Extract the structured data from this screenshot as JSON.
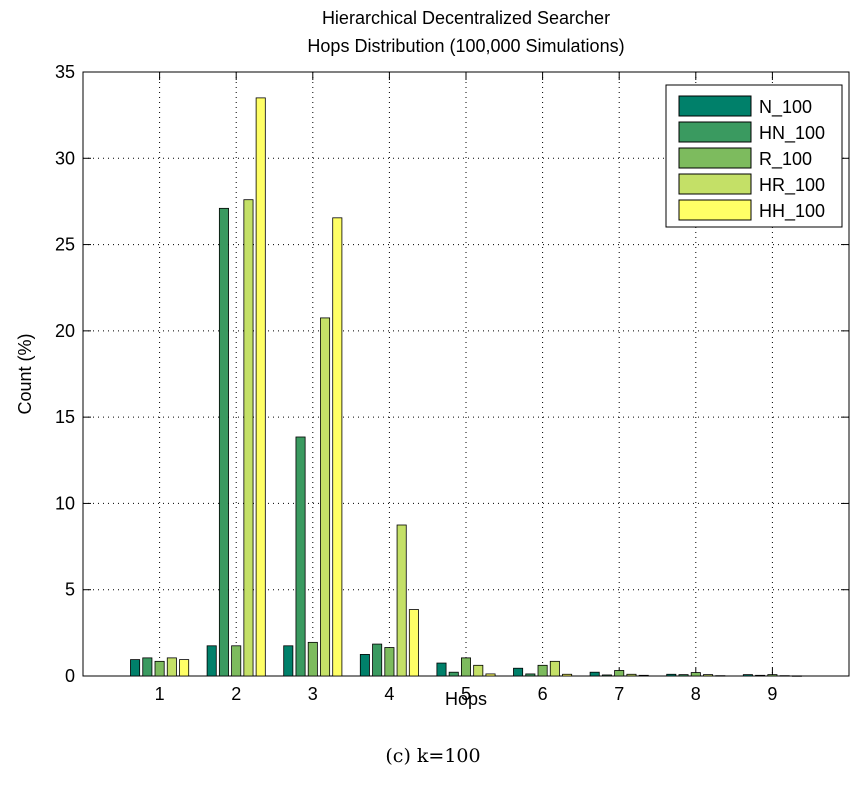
{
  "chart_data": {
    "type": "bar",
    "title": "Hierarchical Decentralized Searcher",
    "subtitle": "Hops Distribution (100,000 Simulations)",
    "xlabel": "Hops",
    "ylabel": "Count (%)",
    "categories": [
      "1",
      "2",
      "3",
      "4",
      "5",
      "6",
      "7",
      "8",
      "9"
    ],
    "ylim": [
      0,
      35
    ],
    "yticks": [
      "0",
      "5",
      "10",
      "15",
      "20",
      "25",
      "30",
      "35"
    ],
    "grid": true,
    "legend_position": "top-right",
    "series": [
      {
        "name": "N_100",
        "color": "#00806a",
        "values": [
          0.95,
          1.75,
          1.75,
          1.25,
          0.75,
          0.45,
          0.22,
          0.1,
          0.08
        ]
      },
      {
        "name": "HN_100",
        "color": "#3a9a60",
        "values": [
          1.05,
          27.1,
          13.85,
          1.85,
          0.22,
          0.12,
          0.06,
          0.08,
          0.04
        ]
      },
      {
        "name": "R_100",
        "color": "#7dbb5e",
        "values": [
          0.85,
          1.75,
          1.95,
          1.65,
          1.05,
          0.62,
          0.32,
          0.2,
          0.08
        ]
      },
      {
        "name": "HR_100",
        "color": "#c4e067",
        "values": [
          1.05,
          27.6,
          20.75,
          8.75,
          0.62,
          0.85,
          0.1,
          0.08,
          0.02
        ]
      },
      {
        "name": "HH_100",
        "color": "#ffff66",
        "values": [
          0.95,
          33.5,
          26.55,
          3.85,
          0.12,
          0.1,
          0.04,
          0.02,
          0.01
        ]
      }
    ]
  },
  "caption": "(c) k=100"
}
